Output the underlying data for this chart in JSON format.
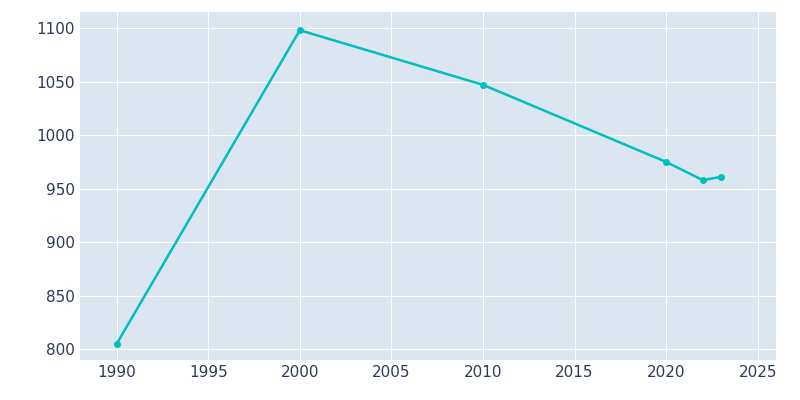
{
  "years": [
    1990,
    2000,
    2010,
    2020,
    2022,
    2023
  ],
  "population": [
    805,
    1098,
    1047,
    975,
    958,
    961
  ],
  "line_color": "#00BEBE",
  "background_color": "#ffffff",
  "plot_bg_color": "#dce6f0",
  "tick_color": "#2d3a5a",
  "grid_color": "#ffffff",
  "xlim": [
    1988,
    2026
  ],
  "ylim": [
    790,
    1115
  ],
  "xticks": [
    1990,
    1995,
    2000,
    2005,
    2010,
    2015,
    2020,
    2025
  ],
  "yticks": [
    800,
    850,
    900,
    950,
    1000,
    1050,
    1100
  ],
  "line_width": 1.8,
  "marker": "o",
  "marker_size": 4,
  "tick_labelsize": 11
}
